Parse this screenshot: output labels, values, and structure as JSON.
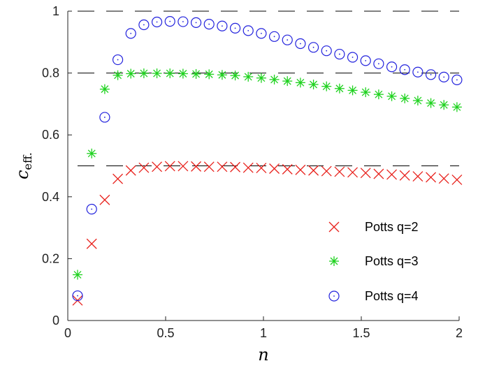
{
  "chart_data": {
    "type": "scatter",
    "xlabel": "n",
    "ylabel_main": "c",
    "ylabel_sub": "eff.",
    "xlim": [
      0,
      2
    ],
    "ylim": [
      0,
      1
    ],
    "xticks": [
      0,
      0.5,
      1,
      1.5,
      2
    ],
    "xtick_labels": [
      "0",
      "0.5",
      "1",
      "1.5",
      "2"
    ],
    "yticks": [
      0,
      0.2,
      0.4,
      0.6,
      0.8,
      1
    ],
    "ytick_labels": [
      "0",
      "0.2",
      "0.4",
      "0.6",
      "0.8",
      "1"
    ],
    "grid": false,
    "legend_position": "bottom-right",
    "reference_lines": [
      0.5,
      0.8,
      1.0
    ],
    "series": [
      {
        "name": "Potts q=2",
        "marker": "x",
        "color": "#e8231e",
        "x": [
          0.05,
          0.1222,
          0.1889,
          0.2556,
          0.3222,
          0.3889,
          0.4556,
          0.5222,
          0.5889,
          0.6556,
          0.7222,
          0.7889,
          0.8556,
          0.9222,
          0.9889,
          1.0556,
          1.1222,
          1.1889,
          1.2556,
          1.3222,
          1.3889,
          1.4556,
          1.5222,
          1.5889,
          1.6556,
          1.7222,
          1.7889,
          1.8556,
          1.9222,
          1.9889
        ],
        "y": [
          0.065,
          0.248,
          0.39,
          0.458,
          0.485,
          0.494,
          0.497,
          0.499,
          0.499,
          0.498,
          0.497,
          0.497,
          0.496,
          0.494,
          0.493,
          0.491,
          0.489,
          0.487,
          0.485,
          0.483,
          0.481,
          0.479,
          0.477,
          0.474,
          0.472,
          0.469,
          0.466,
          0.463,
          0.459,
          0.455
        ]
      },
      {
        "name": "Potts q=3",
        "marker": "asterisk",
        "color": "#1fd21f",
        "x": [
          0.05,
          0.1222,
          0.1889,
          0.2556,
          0.3222,
          0.3889,
          0.4556,
          0.5222,
          0.5889,
          0.6556,
          0.7222,
          0.7889,
          0.8556,
          0.9222,
          0.9889,
          1.0556,
          1.1222,
          1.1889,
          1.2556,
          1.3222,
          1.3889,
          1.4556,
          1.5222,
          1.5889,
          1.6556,
          1.7222,
          1.7889,
          1.8556,
          1.9222,
          1.9889
        ],
        "y": [
          0.148,
          0.54,
          0.748,
          0.793,
          0.798,
          0.799,
          0.799,
          0.799,
          0.798,
          0.797,
          0.796,
          0.794,
          0.792,
          0.788,
          0.784,
          0.779,
          0.774,
          0.769,
          0.763,
          0.757,
          0.75,
          0.744,
          0.738,
          0.731,
          0.725,
          0.718,
          0.711,
          0.703,
          0.697,
          0.69
        ]
      },
      {
        "name": "Potts q=4",
        "marker": "circle-dot",
        "color": "#2222dd",
        "x": [
          0.05,
          0.1222,
          0.1889,
          0.2556,
          0.3222,
          0.3889,
          0.4556,
          0.5222,
          0.5889,
          0.6556,
          0.7222,
          0.7889,
          0.8556,
          0.9222,
          0.9889,
          1.0556,
          1.1222,
          1.1889,
          1.2556,
          1.3222,
          1.3889,
          1.4556,
          1.5222,
          1.5889,
          1.6556,
          1.7222,
          1.7889,
          1.8556,
          1.9222,
          1.9889
        ],
        "y": [
          0.08,
          0.36,
          0.657,
          0.843,
          0.928,
          0.956,
          0.965,
          0.967,
          0.966,
          0.963,
          0.958,
          0.952,
          0.945,
          0.937,
          0.928,
          0.918,
          0.907,
          0.895,
          0.883,
          0.872,
          0.861,
          0.851,
          0.84,
          0.83,
          0.82,
          0.811,
          0.803,
          0.795,
          0.787,
          0.778
        ]
      }
    ]
  }
}
